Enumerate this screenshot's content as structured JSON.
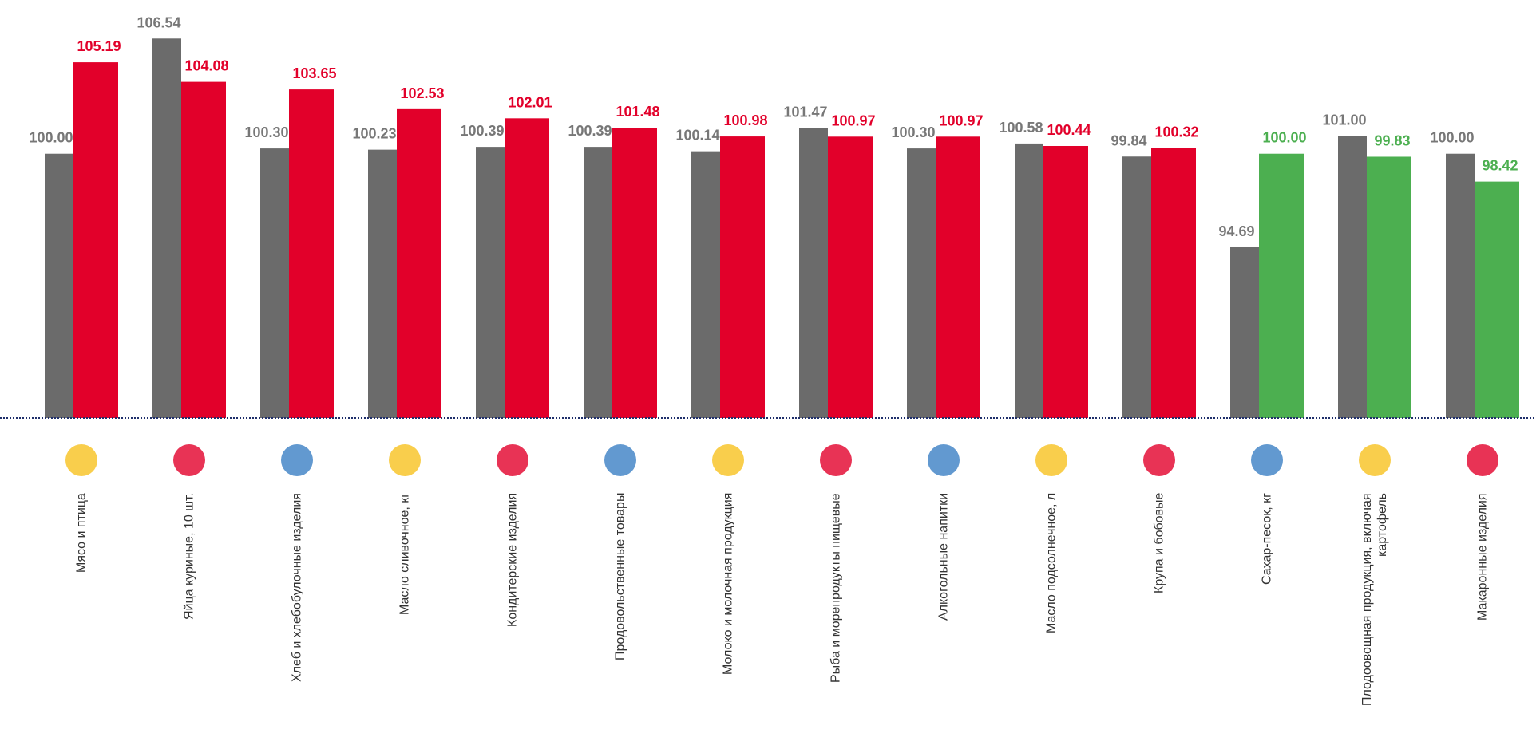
{
  "chart_data": {
    "type": "bar",
    "categories": [
      "Мясо и птица",
      "Яйца куриные, 10 шт.",
      "Хлеб и хлебобулочные изделия",
      "Масло сливочное, кг",
      "Кондитерские изделия",
      "Продовольственные товары",
      "Молоко и молочная продукция",
      "Рыба и морепродукты пищевые",
      "Алкогольные напитки",
      "Масло подсолнечное, л",
      "Крупа и бобовые",
      "Сахар-песок, кг",
      "Плодоовощная продукция, включая картофель",
      "Макаронные изделия"
    ],
    "series": [
      {
        "color": "#6b6b6b",
        "values": [
          100.0,
          106.54,
          100.3,
          100.23,
          100.39,
          100.39,
          100.14,
          101.47,
          100.3,
          100.58,
          99.84,
          94.69,
          101.0,
          100.0
        ],
        "value_labels": [
          "100.00",
          "106.54",
          "100.30",
          "100.23",
          "100.39",
          "100.39",
          "100.14",
          "101.47",
          "100.30",
          "100.58",
          "99.84",
          "94.69",
          "101.00",
          "100.00"
        ]
      },
      {
        "colors": [
          "#e2002a",
          "#e2002a",
          "#e2002a",
          "#e2002a",
          "#e2002a",
          "#e2002a",
          "#e2002a",
          "#e2002a",
          "#e2002a",
          "#e2002a",
          "#e2002a",
          "#4caf50",
          "#4caf50",
          "#4caf50"
        ],
        "values": [
          105.19,
          104.08,
          103.65,
          102.53,
          102.01,
          101.48,
          100.98,
          100.97,
          100.97,
          100.44,
          100.32,
          100.0,
          99.83,
          98.42
        ],
        "value_labels": [
          "105.19",
          "104.08",
          "103.65",
          "102.53",
          "102.01",
          "101.48",
          "100.98",
          "100.97",
          "100.97",
          "100.44",
          "100.32",
          "100.00",
          "99.83",
          "98.42"
        ]
      }
    ],
    "ylim": [
      85,
      108.5
    ]
  }
}
